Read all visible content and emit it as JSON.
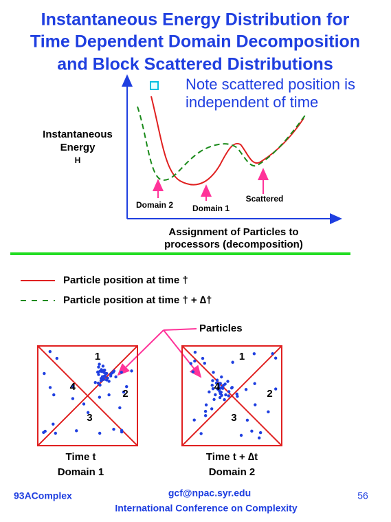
{
  "title": {
    "lines": [
      "Instantaneous Energy Distribution for",
      "Time Dependent Domain Decomposition",
      "and Block Scattered Distributions"
    ]
  },
  "note": {
    "lines": [
      "Note scattered position is",
      "independent of time"
    ]
  },
  "plot": {
    "y_label": [
      "Instantaneous",
      "Energy",
      "H"
    ],
    "x_label": [
      "Assignment of Particles to",
      "processors (decomposition)"
    ],
    "annotations": [
      "Domain 2",
      "Domain 1",
      "Scattered"
    ]
  },
  "legend": [
    "Particle position at time †",
    "Particle position at time † + ∆†"
  ],
  "particles_label": "Particles",
  "boxes": [
    {
      "regions": [
        "1",
        "2",
        "3",
        "4"
      ],
      "caption": [
        "Time  t",
        "Domain  1"
      ]
    },
    {
      "regions": [
        "1",
        "2",
        "3",
        "4"
      ],
      "caption": [
        "Time t + ∆t",
        "Domain  2"
      ]
    }
  ],
  "footer": {
    "left": "93AComplex",
    "email": "gcf@npac.syr.edu",
    "conference": "International Conference on Complexity",
    "page": "56"
  }
}
